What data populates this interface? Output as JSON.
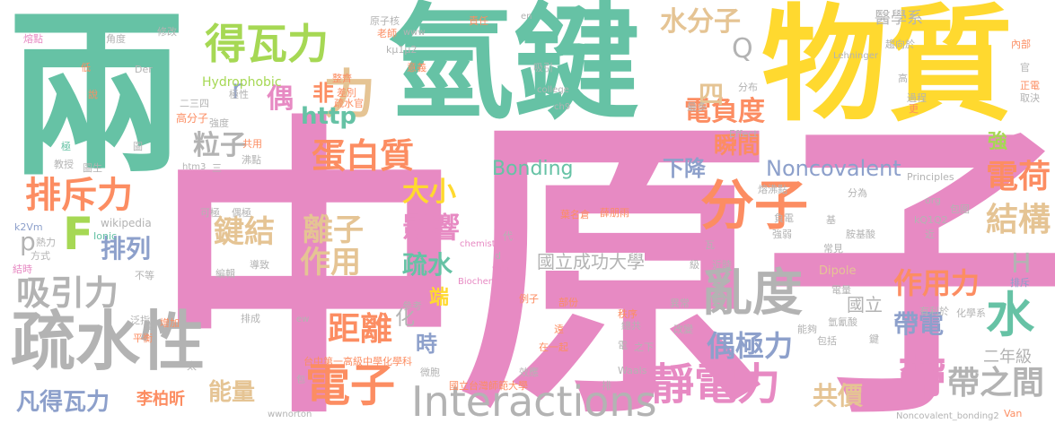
{
  "palette": {
    "pink": "#e78ac3",
    "green": "#66c2a5",
    "yellow": "#ffd92f",
    "orange": "#fc8d62",
    "blue": "#8da0cb",
    "tan": "#e5c494",
    "grey": "#b3b3b3",
    "lime": "#a6d854"
  },
  "words": {
    "zhong_yuan_zi": "中原子",
    "liang": "兩",
    "qing_jian": "氫鍵",
    "wu_zhi": "物質",
    "li": "力",
    "de_wa_li": "得瓦力",
    "shui_fen_zi": "水分子",
    "shu_shui_xing": "疏水性",
    "fen_zi": "分子",
    "luan_du": "亂度",
    "jing_dian_li": "靜電力",
    "dai_zhi_jian": "帶之間",
    "dian_zi": "電子",
    "interactions": "Interactions",
    "dan_bai_zhi": "蛋白質",
    "pai_chi_li": "排斥力",
    "xi_yin_li": "吸引力",
    "jie_gou": "結構",
    "dian_he": "電荷",
    "zuo_yong_li": "作用力",
    "shui": "水",
    "ou_ji_li": "偶極力",
    "ju_li": "距離",
    "li_zi": "離子",
    "jian_jie": "鍵結",
    "zuo_yong": "作用",
    "ying_xiang": "影響",
    "shu_shui": "疏水",
    "da_xiao": "大小",
    "li_zi_particle": "粒子",
    "dian_fu_du": "電負度",
    "shun_jian": "瞬間",
    "xia_jiang": "下降",
    "noncovalent": "Noncovalent",
    "bonding": "Bonding",
    "ncku": "國立成功大學",
    "http": "http",
    "fei": "非",
    "ou": "偶",
    "si": "四",
    "r": "r",
    "F": "F",
    "p": "p",
    "pai_lie": "排列",
    "H": "H",
    "Q": "Q",
    "qiang": "強",
    "dai_dian": "帶電",
    "gong_jia": "共價",
    "neng_liang": "能量",
    "fan_de_wa_li": "凡得瓦力",
    "li_bo_xin": "李柏昕",
    "shi": "時",
    "duan": "端",
    "hua": "化",
    "guo_li": "國立",
    "er_nian_ji": "二年級",
    "dai": "帶",
    "yi_xue_xi": "醫學系",
    "hydrophobic": "Hydrophobic",
    "ji_xing": "極性",
    "zheng_qi": "整齊",
    "cha_bie": "差別",
    "shu_shui_qi": "疏水官",
    "er_san_si": "二三四",
    "gao_fen_zi": "高分子",
    "qiang_du": "強度",
    "gong_yong": "共用",
    "fei_dian": "沸點",
    "jiao_shou": "教授",
    "tu_sheng": "圖生",
    "htm3": "htm3",
    "san": "三",
    "ke_ji": "可極",
    "ou_ji": "偶極",
    "wikipedia": "wikipedia",
    "ionic": "Ionic",
    "k2vm": "k2Vm",
    "re_li": "熱力",
    "fang_shi": "方式",
    "jie_shi": "結時",
    "bu_deng": "不等",
    "bian_ji": "編輯",
    "dao_zhi": "導致",
    "fan_zhi": "泛指",
    "zeng_jia": "增加",
    "ping_heng": "平衡",
    "xue": "學",
    "tai": "太",
    "pai_cheng": "排成",
    "can_kao": "參考",
    "ew": "ew",
    "taichung": "台中第一高級中學化學科",
    "ntnu": "國立台灣師範大學",
    "bao": "包",
    "wei_bao": "微胞",
    "xiao_lu": "效應",
    "waals": "Waals",
    "zai_yi_qi": "在一起",
    "yuan": "遠",
    "pai": "排",
    "wwnorton": "wwnorton",
    "ye_ming_cang": "葉名倉",
    "xue_peng_yu": "薛朋雨",
    "chemist": "chemist",
    "biochemistry": "Biochemistry",
    "wiki": "wiki",
    "d": "d",
    "dai2": "代",
    "li_ru": "例子",
    "bu_fen": "部份",
    "zong_gong": "總共",
    "zhi_xia": "之下",
    "dian": "電",
    "yi_chang": "異常",
    "zhi_xu": "秩序",
    "gai_bian": "改變",
    "neng_gou": "能夠",
    "bao_kuo": "包括",
    "you_li_yu": "有利於",
    "hua_xue_xi": "化學系",
    "dian_liang": "電量",
    "qing_an_suan": "氫氰酸",
    "jian": "鍵",
    "pai_chi": "排斥",
    "dipole": "Dipole",
    "ji": "級",
    "jin_shi": "近時",
    "chang_jian": "常見",
    "qiang_ruo": "強弱",
    "an_ji_suan": "胺基酸",
    "jin": "近",
    "kq1q2": "kQ1Q2",
    "fu_dian": "負電",
    "ji2": "基",
    "wa": "瓦",
    "rong_re_dian": "熔沸點",
    "fen_wei": "分為",
    "bao_wei": "包圍",
    "org": "org",
    "effect": "Effect",
    "principles": "Principles",
    "noncovalent_bonding2": "Noncovalent_bonding2",
    "van": "Van",
    "ch9": "ch9",
    "ci_duo": "最多",
    "fen_bu": "分布",
    "lehninger": "Lehninger",
    "qu_xiang_yu": "趨向於",
    "gao": "高",
    "nei_bu": "內部",
    "guan": "官",
    "zheng_dian": "正電",
    "qu_jue": "取決",
    "guo_cheng": "過程",
    "geng": "更",
    "college": "college",
    "yi_yi": "意義",
    "xi_yin": "吸引",
    "ze_ren": "責任",
    "en": "en",
    "yuan_zi_he": "原子核",
    "lao_shi": "老師",
    "www": "www",
    "kmu": "kμ1μ2",
    "der": "Der",
    "xiu_gai": "修改",
    "jiao_du": "角度",
    "rong_dian": "熔點",
    "di": "低",
    "shuo": "說",
    "ji3": "極",
    "tu": "圖"
  }
}
